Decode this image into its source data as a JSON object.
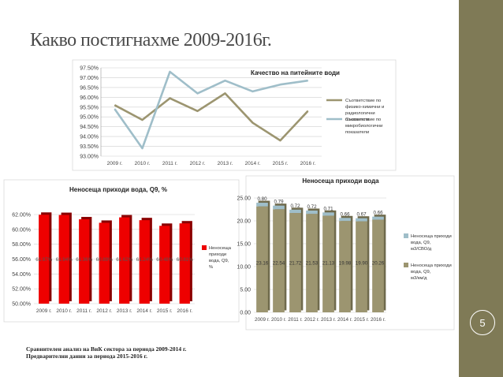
{
  "slide": {
    "title": "Какво постигнахме 2009-2016г.",
    "page_number": "5",
    "footnote_1": "Сравнителен анализ на ВиК сектора за периода 2009-2014 г.",
    "footnote_2": "Предварителни данни за периода 2015-2016 г."
  },
  "colors": {
    "sidebar": "#7f7a56",
    "khaki": "#9c9570",
    "lightblue": "#9fbec9",
    "red": "#ee0000"
  },
  "chart_data": [
    {
      "type": "line",
      "title": "Качество на питейните води",
      "categories": [
        "2009 г.",
        "2010 г.",
        "2011 г.",
        "2012 г.",
        "2013 г.",
        "2014 г.",
        "2015 г.",
        "2016 г."
      ],
      "y_ticks": [
        "97.50%",
        "97.00%",
        "96.50%",
        "96.00%",
        "95.50%",
        "95.00%",
        "94.50%",
        "94.00%",
        "93.50%",
        "93.00%"
      ],
      "ylim": [
        93.0,
        97.5
      ],
      "series": [
        {
          "name": "Съответствие по физико-химични и радиологични показатели",
          "color": "#9c9570",
          "values": [
            95.6,
            94.85,
            95.95,
            95.3,
            96.2,
            94.7,
            93.8,
            95.3
          ]
        },
        {
          "name": "Съответствие по микробиологични показатели",
          "color": "#9fbec9",
          "values": [
            95.4,
            93.4,
            97.3,
            96.2,
            96.85,
            96.3,
            96.65,
            96.85
          ]
        }
      ],
      "legend": "right"
    },
    {
      "type": "bar",
      "title": "Неносеща приходи вода, Q9, %",
      "categories": [
        "2009 г.",
        "2010 г.",
        "2011 г.",
        "2012 г.",
        "2013 г.",
        "2014 г.",
        "2015 г.",
        "2016 г."
      ],
      "y_ticks": [
        "62.00%",
        "60.00%",
        "58.00%",
        "56.00%",
        "54.00%",
        "52.00%",
        "50.00%"
      ],
      "ylim": [
        50,
        62
      ],
      "values": [
        61.97,
        61.94,
        61.36,
        60.89,
        61.62,
        61.24,
        60.48,
        60.81
      ],
      "data_labels": [
        "61.97%",
        "61.94%",
        "61.36%",
        "60.89%",
        "61.62%",
        "61.24%",
        "60.48%",
        "60.81%"
      ],
      "series_name": "Неносеща приходи вода, Q9, %",
      "legend": "right"
    },
    {
      "type": "bar",
      "title": "Неносеща приходи вода",
      "categories": [
        "2009 г.",
        "2010 г.",
        "2011 г.",
        "2012 г.",
        "2013 г.",
        "2014 г.",
        "2015 г.",
        "2016 г."
      ],
      "y_ticks": [
        "25.00",
        "20.00",
        "15.00",
        "10.00",
        "5.00",
        "0.00"
      ],
      "ylim": [
        0,
        25
      ],
      "series": [
        {
          "name": "Неносеща приходи вода, Q9, м3/СВО/д",
          "color": "#9fbec9",
          "values": [
            0.8,
            0.79,
            0.72,
            0.72,
            0.71,
            0.66,
            0.67,
            0.66
          ],
          "labels": [
            "0.80",
            "0.79",
            "0.72",
            "0.72",
            "0.71",
            "0.66",
            "0.67",
            "0.66"
          ]
        },
        {
          "name": "Неносеща приходи вода, Q9, м3/км/д",
          "color": "#9c9570",
          "values": [
            23.16,
            22.54,
            21.72,
            21.53,
            21.13,
            19.98,
            19.9,
            20.26
          ],
          "labels": [
            "23.16",
            "22.54",
            "21.72",
            "21.53",
            "21.13",
            "19.98",
            "19.90",
            "20.26"
          ]
        }
      ],
      "legend": "right"
    }
  ]
}
